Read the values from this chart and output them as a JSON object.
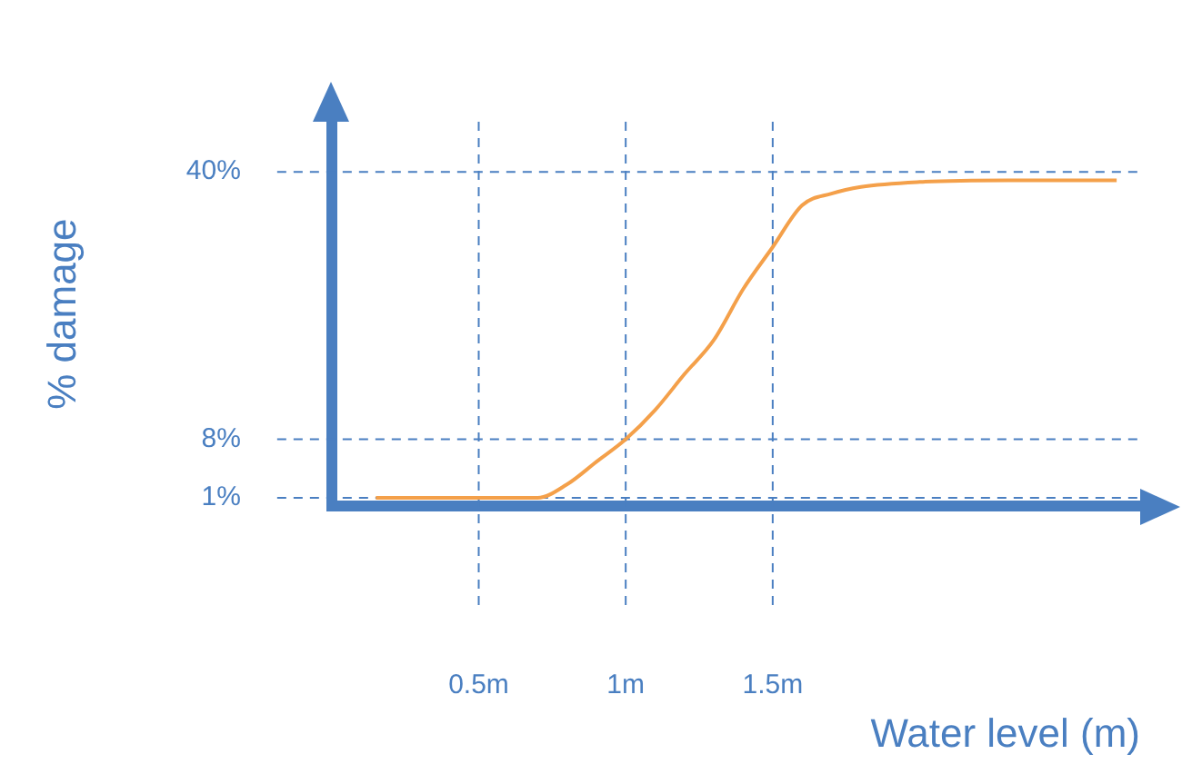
{
  "chart_data": {
    "type": "line",
    "xlabel": "Water level (m)",
    "ylabel": "% damage",
    "x": [
      0.15,
      0.3,
      0.5,
      0.6,
      0.7,
      0.8,
      0.9,
      1.0,
      1.1,
      1.2,
      1.3,
      1.4,
      1.5,
      1.6,
      1.7,
      1.8,
      2.0,
      2.3,
      2.67
    ],
    "series": [
      {
        "color": "#f4a04a",
        "values": [
          1,
          1,
          1,
          1,
          1,
          2.6,
          5.3,
          8,
          11.5,
          15.8,
          19.9,
          26,
          31,
          36,
          37.4,
          38.2,
          38.8,
          39,
          39
        ]
      }
    ],
    "xlim": [
      0,
      2.75
    ],
    "ylim": [
      0,
      46
    ],
    "xticks": [
      {
        "value": 0.5,
        "label": "0.5m"
      },
      {
        "value": 1,
        "label": "1m"
      },
      {
        "value": 1.5,
        "label": "1.5m"
      }
    ],
    "yticks": [
      {
        "value": 1,
        "label": "1%"
      },
      {
        "value": 8,
        "label": "8%"
      },
      {
        "value": 40,
        "label": "40%"
      }
    ],
    "ref_lines": [
      {
        "axis": "y",
        "value": 1,
        "color": "#4a7fc1",
        "line_style": "dashed"
      },
      {
        "axis": "y",
        "value": 8,
        "color": "#4a7fc1",
        "line_style": "dashed"
      },
      {
        "axis": "y",
        "value": 40,
        "color": "#4a7fc1",
        "line_style": "dashed"
      },
      {
        "axis": "x",
        "value": 0.5,
        "color": "#4a7fc1",
        "line_style": "dashed"
      },
      {
        "axis": "x",
        "value": 1,
        "color": "#4a7fc1",
        "line_style": "dashed"
      },
      {
        "axis": "x",
        "value": 1.5,
        "color": "#4a7fc1",
        "line_style": "dashed"
      }
    ],
    "grid": false,
    "legend": false,
    "marker": "none",
    "line_style": "solid"
  }
}
